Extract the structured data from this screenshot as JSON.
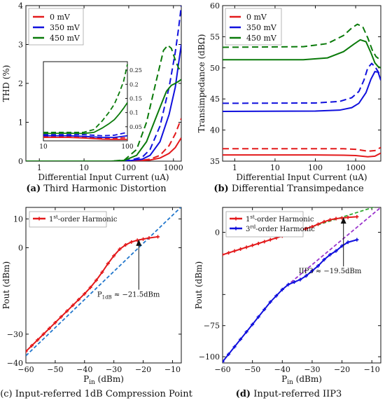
{
  "captions": {
    "a_tag": "(a)",
    "a_text": " Third Harmonic Distortion",
    "b_tag": "(b)",
    "b_text": " Differential Transimpedance",
    "c_tag": "(c)",
    "c_text": " Input-referred 1dB Compression Point",
    "d_tag": "(d)",
    "d_text": " Input-referred IIP3"
  },
  "chart_data": [
    {
      "id": "a",
      "type": "line",
      "xscale": "log",
      "xlim": [
        0.5,
        1500
      ],
      "ylim": [
        0,
        4
      ],
      "xticks": [
        1,
        10,
        100,
        1000
      ],
      "xticklabels": [
        "1",
        "10",
        "100",
        "1000"
      ],
      "yticks": [
        0,
        1,
        2,
        3,
        4
      ],
      "xlabel": "Differential Input Current (uA)",
      "ylabel": "THD (%)",
      "legend_position": "top-left",
      "legend": [
        {
          "label": "0 mV",
          "color": "#e31a1c"
        },
        {
          "label": "350 mV",
          "color": "#1010dd"
        },
        {
          "label": "450 mV",
          "color": "#0a7a0a"
        }
      ],
      "series": [
        {
          "name": "0 mV",
          "color": "#e31a1c",
          "dash": false,
          "x": [
            0.5,
            50,
            100,
            200,
            300,
            500,
            800,
            1100,
            1500
          ],
          "y": [
            0,
            0,
            0.005,
            0.015,
            0.03,
            0.08,
            0.2,
            0.35,
            0.6
          ]
        },
        {
          "name": "0 mV",
          "color": "#e31a1c",
          "dash": true,
          "x": [
            0.5,
            50,
            100,
            200,
            300,
            500,
            800,
            1100,
            1500
          ],
          "y": [
            0,
            0,
            0.008,
            0.025,
            0.05,
            0.15,
            0.4,
            0.7,
            1.1
          ]
        },
        {
          "name": "350 mV",
          "color": "#1010dd",
          "dash": false,
          "x": [
            0.5,
            50,
            100,
            200,
            300,
            500,
            800,
            1100,
            1300,
            1500
          ],
          "y": [
            0,
            0,
            0.01,
            0.05,
            0.15,
            0.5,
            1.2,
            1.9,
            2.5,
            3.0
          ]
        },
        {
          "name": "350 mV",
          "color": "#1010dd",
          "dash": true,
          "x": [
            0.5,
            50,
            100,
            200,
            300,
            500,
            800,
            1100,
            1300,
            1500
          ],
          "y": [
            0,
            0,
            0.02,
            0.1,
            0.3,
            0.9,
            1.9,
            2.8,
            3.4,
            4.0
          ]
        },
        {
          "name": "450 mV",
          "color": "#0a7a0a",
          "dash": false,
          "x": [
            0.5,
            40,
            80,
            150,
            250,
            400,
            550,
            700,
            900,
            1100,
            1300,
            1500
          ],
          "y": [
            0,
            0,
            0.02,
            0.15,
            0.5,
            1.1,
            1.5,
            1.8,
            1.95,
            2.0,
            2.05,
            2.1
          ]
        },
        {
          "name": "450 mV",
          "color": "#0a7a0a",
          "dash": true,
          "x": [
            0.5,
            40,
            80,
            150,
            250,
            400,
            600,
            750,
            900,
            1100,
            1300,
            1500
          ],
          "y": [
            0,
            0,
            0.03,
            0.3,
            1.0,
            2.0,
            2.85,
            2.98,
            2.9,
            2.6,
            2.4,
            2.3
          ]
        }
      ],
      "inset": {
        "xscale": "log",
        "xlim": [
          10,
          100
        ],
        "ylim": [
          0,
          0.28
        ],
        "xticks": [
          10,
          100
        ],
        "xticklabels": [
          "10",
          "100"
        ],
        "yticks": [
          0.05,
          0.1,
          0.15,
          0.2,
          0.25
        ],
        "yticklabels": [
          "0.05",
          "0.1",
          "0.15",
          "0.2",
          "0.25"
        ],
        "series": [
          {
            "color": "#e31a1c",
            "dash": false,
            "x": [
              10,
              20,
              30,
              50,
              70,
              100
            ],
            "y": [
              0.012,
              0.012,
              0.01,
              0.006,
              0.005,
              0.005
            ]
          },
          {
            "color": "#e31a1c",
            "dash": true,
            "x": [
              10,
              20,
              30,
              50,
              70,
              100
            ],
            "y": [
              0.016,
              0.016,
              0.014,
              0.009,
              0.009,
              0.011
            ]
          },
          {
            "color": "#1010dd",
            "dash": false,
            "x": [
              10,
              20,
              30,
              50,
              70,
              100
            ],
            "y": [
              0.018,
              0.018,
              0.016,
              0.012,
              0.012,
              0.018
            ]
          },
          {
            "color": "#1010dd",
            "dash": true,
            "x": [
              10,
              20,
              30,
              50,
              70,
              100
            ],
            "y": [
              0.022,
              0.022,
              0.022,
              0.018,
              0.02,
              0.03
            ]
          },
          {
            "color": "#0a7a0a",
            "dash": false,
            "x": [
              10,
              20,
              30,
              40,
              50,
              60,
              70,
              80,
              90,
              100
            ],
            "y": [
              0.026,
              0.027,
              0.026,
              0.03,
              0.045,
              0.06,
              0.075,
              0.095,
              0.115,
              0.135
            ]
          },
          {
            "color": "#0a7a0a",
            "dash": true,
            "x": [
              10,
              20,
              30,
              40,
              50,
              60,
              70,
              80,
              90,
              100
            ],
            "y": [
              0.03,
              0.03,
              0.03,
              0.04,
              0.07,
              0.1,
              0.13,
              0.17,
              0.21,
              0.27
            ]
          }
        ]
      }
    },
    {
      "id": "b",
      "type": "line",
      "xscale": "log",
      "xlim": [
        0.5,
        4200
      ],
      "ylim": [
        35,
        60
      ],
      "xticks": [
        1,
        10,
        100,
        1000
      ],
      "xticklabels": [
        "1",
        "10",
        "100",
        "1000"
      ],
      "yticks": [
        35,
        40,
        45,
        50,
        55,
        60
      ],
      "xlabel": "Differential Input Current (uA)",
      "ylabel": "Transimpedance (dBΩ)",
      "legend_position": "top-left",
      "legend": [
        {
          "label": "0 mV",
          "color": "#e31a1c"
        },
        {
          "label": "350 mV",
          "color": "#1010dd"
        },
        {
          "label": "450 mV",
          "color": "#0a7a0a"
        }
      ],
      "series": [
        {
          "name": "0 mV",
          "color": "#e31a1c",
          "dash": false,
          "x": [
            0.5,
            100,
            500,
            1000,
            2000,
            3000,
            4200
          ],
          "y": [
            36.0,
            36.0,
            35.95,
            35.9,
            35.7,
            35.8,
            36.3
          ]
        },
        {
          "name": "0 mV",
          "color": "#e31a1c",
          "dash": true,
          "x": [
            0.5,
            100,
            500,
            1000,
            2000,
            3000,
            4200
          ],
          "y": [
            37.0,
            37.0,
            37.0,
            36.9,
            36.6,
            36.7,
            37.2
          ]
        },
        {
          "name": "350 mV",
          "color": "#1010dd",
          "dash": false,
          "x": [
            0.5,
            100,
            400,
            800,
            1200,
            1800,
            2400,
            3000,
            3600,
            4200
          ],
          "y": [
            43.0,
            43.05,
            43.2,
            43.6,
            44.3,
            46.0,
            48.2,
            49.4,
            49.3,
            48.0
          ]
        },
        {
          "name": "350 mV",
          "color": "#1010dd",
          "dash": true,
          "x": [
            0.5,
            100,
            400,
            800,
            1200,
            1600,
            2000,
            2500,
            3000,
            3600,
            4200
          ],
          "y": [
            44.3,
            44.35,
            44.6,
            45.2,
            46.2,
            48.0,
            50.0,
            50.7,
            50.2,
            49.4,
            48.6
          ]
        },
        {
          "name": "450 mV",
          "color": "#0a7a0a",
          "dash": false,
          "x": [
            0.5,
            50,
            200,
            500,
            900,
            1300,
            1800,
            2400,
            3000,
            3600,
            4200
          ],
          "y": [
            51.3,
            51.3,
            51.6,
            52.6,
            53.8,
            54.5,
            54.2,
            52.4,
            50.8,
            50.2,
            50.0
          ]
        },
        {
          "name": "450 mV",
          "color": "#0a7a0a",
          "dash": true,
          "x": [
            0.5,
            50,
            200,
            500,
            800,
            1100,
            1500,
            2000,
            2600,
            3200,
            4200
          ],
          "y": [
            53.3,
            53.4,
            53.9,
            55.2,
            56.4,
            57.0,
            56.6,
            54.8,
            52.8,
            51.8,
            51.2
          ]
        }
      ]
    },
    {
      "id": "c",
      "type": "line",
      "xlim": [
        -60,
        -7
      ],
      "ylim": [
        -40,
        14
      ],
      "xticks": [
        -60,
        -50,
        -40,
        -30,
        -20,
        -10
      ],
      "xticklabels": [
        "−60",
        "−50",
        "−40",
        "−30",
        "−20",
        "−10"
      ],
      "yticks": [
        -40,
        -30,
        0,
        10
      ],
      "yticklabels": [
        "−40",
        "−30",
        "0",
        "10"
      ],
      "xlabel_main": "P",
      "xlabel_sub": "in",
      "xlabel_tail": " (dBm)",
      "ylabel": "Pout (dBm)",
      "legend_position": "top-left",
      "legend": [
        {
          "label_pre": "1",
          "label_sup": "st",
          "label_post": "-order Harmonic",
          "color": "#e31a1c"
        }
      ],
      "series": [
        {
          "name": "1st-order Harmonic",
          "color": "#e31a1c",
          "markers": true,
          "x": [
            -60,
            -58,
            -56,
            -54,
            -52,
            -50,
            -48,
            -46,
            -44,
            -42,
            -40,
            -38,
            -36,
            -34,
            -32,
            -30,
            -28,
            -26,
            -24,
            -22,
            -20,
            -18,
            -15
          ],
          "y": [
            -36,
            -34,
            -32,
            -30,
            -28,
            -26,
            -24,
            -22,
            -20,
            -18,
            -16,
            -13.8,
            -11.3,
            -8.5,
            -5.5,
            -2.8,
            -0.5,
            1.0,
            2.0,
            2.6,
            3.0,
            3.4,
            3.8
          ]
        }
      ],
      "fit_line": {
        "color": "#2277cc",
        "x": [
          -60,
          -7
        ],
        "y": [
          -37.5,
          14.2
        ]
      },
      "annotation": {
        "pre": "P",
        "sub": "1dB",
        "post": " ≈ −21.5dBm",
        "x": -21.5,
        "y": 2.6,
        "text_x": -25,
        "text_y": -17
      }
    },
    {
      "id": "d",
      "type": "line",
      "xlim": [
        -60,
        -7
      ],
      "ylim": [
        -105,
        20
      ],
      "xticks": [
        -60,
        -50,
        -40,
        -30,
        -20,
        -10
      ],
      "xticklabels": [
        "−60",
        "−50",
        "−40",
        "−30",
        "−20",
        "−10"
      ],
      "yticks": [
        -100,
        -75,
        0
      ],
      "yticklabels": [
        "−100",
        "−75",
        "0"
      ],
      "extra_ytick": {
        "value": -50,
        "label": ""
      },
      "xlabel_main": "P",
      "xlabel_sub": "in",
      "xlabel_tail": " (dBm)",
      "ylabel": "Pout (dBm)",
      "legend_position": "top-left",
      "legend": [
        {
          "label_pre": "1",
          "label_sup": "st",
          "label_post": "-order Harmonic",
          "color": "#e31a1c"
        },
        {
          "label_pre": "3",
          "label_sup": "rd",
          "label_post": "-order Harmonic",
          "color": "#1010dd"
        }
      ],
      "series": [
        {
          "name": "1st-order Harmonic",
          "color": "#e31a1c",
          "markers": true,
          "x": [
            -60,
            -58,
            -56,
            -54,
            -52,
            -50,
            -48,
            -46,
            -44,
            -42,
            -40,
            -38,
            -36,
            -34,
            -32,
            -30,
            -28,
            -26,
            -24,
            -22,
            -20,
            -18,
            -15
          ],
          "y": [
            -18,
            -16.5,
            -15,
            -13.5,
            -12,
            -10.5,
            -9,
            -7.5,
            -6,
            -4.5,
            -3,
            -1.5,
            0,
            1.5,
            3,
            4.5,
            6.5,
            8.5,
            10,
            11,
            11.5,
            12,
            12.5
          ]
        },
        {
          "name": "3rd-order Harmonic",
          "color": "#1010dd",
          "markers": true,
          "x": [
            -60,
            -58,
            -56,
            -54,
            -52,
            -50,
            -48,
            -46,
            -44,
            -42,
            -40,
            -38,
            -36,
            -34,
            -32,
            -30,
            -28,
            -26,
            -24,
            -22,
            -20,
            -18,
            -15
          ],
          "y": [
            -104,
            -98,
            -92,
            -86,
            -80,
            -74,
            -68,
            -62,
            -56,
            -51,
            -46,
            -42,
            -40,
            -38,
            -35,
            -31,
            -27,
            -22,
            -18,
            -15,
            -11,
            -8,
            -6
          ]
        }
      ],
      "fit_lines": [
        {
          "color": "#33aa33",
          "x": [
            -30,
            -7
          ],
          "y": [
            4.5,
            22
          ]
        },
        {
          "color": "#9933cc",
          "x": [
            -40,
            -7
          ],
          "y": [
            -46,
            20
          ]
        }
      ],
      "annotation": {
        "pre": "IIP3 ≈ −19.5dBm",
        "sub": "",
        "post": "",
        "x": -19.5,
        "y": 11.5,
        "text_x": -24,
        "text_y": -33
      }
    }
  ]
}
